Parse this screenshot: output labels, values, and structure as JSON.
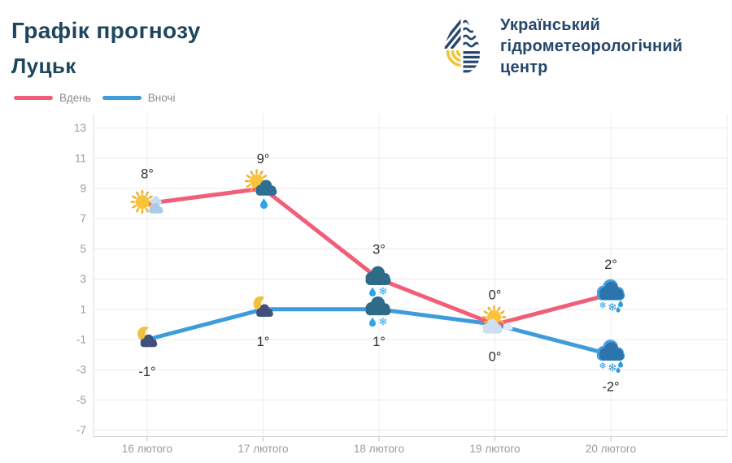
{
  "header": {
    "title": "Графік прогнозу",
    "city": "Луцьк"
  },
  "logo": {
    "line1": "Український",
    "line2": "гідрометеорологічний",
    "line3": "центр",
    "navy": "#26476b",
    "yellow": "#f3c337"
  },
  "legend": {
    "items": [
      {
        "label": "Вдень",
        "color": "#f15e78"
      },
      {
        "label": "Вночі",
        "color": "#3f9cdb"
      }
    ]
  },
  "chart_data": {
    "type": "line",
    "title": "Графік прогнозу",
    "subtitle": "Луцьк",
    "categories": [
      "16 лютого",
      "17 лютого",
      "18 лютого",
      "19 лютого",
      "20 лютого"
    ],
    "series": [
      {
        "name": "Вдень",
        "color": "#f15e78",
        "values": [
          8,
          9,
          3,
          0,
          2
        ],
        "point_labels": [
          "8°",
          "9°",
          "3°",
          "0°",
          "2°"
        ],
        "icons": [
          "sun-small-cloud",
          "sun-rain-cloud",
          "sleet-cloud",
          "sun-cloud",
          "wet-snow-cloud"
        ],
        "label_position": "above"
      },
      {
        "name": "Вночі",
        "color": "#3f9cdb",
        "values": [
          -1,
          1,
          1,
          0,
          -2
        ],
        "point_labels": [
          "-1°",
          "1°",
          "1°",
          "0°",
          "-2°"
        ],
        "icons": [
          "moon-cloud",
          "moon-cloud",
          "sleet-cloud",
          null,
          "wet-snow-cloud"
        ],
        "label_position": "below"
      }
    ],
    "yticks": [
      13,
      11,
      9,
      7,
      5,
      3,
      1,
      -1,
      -3,
      -5,
      -7
    ],
    "ylim": [
      -7,
      13
    ],
    "grid": true,
    "legend_position": "top-left"
  }
}
